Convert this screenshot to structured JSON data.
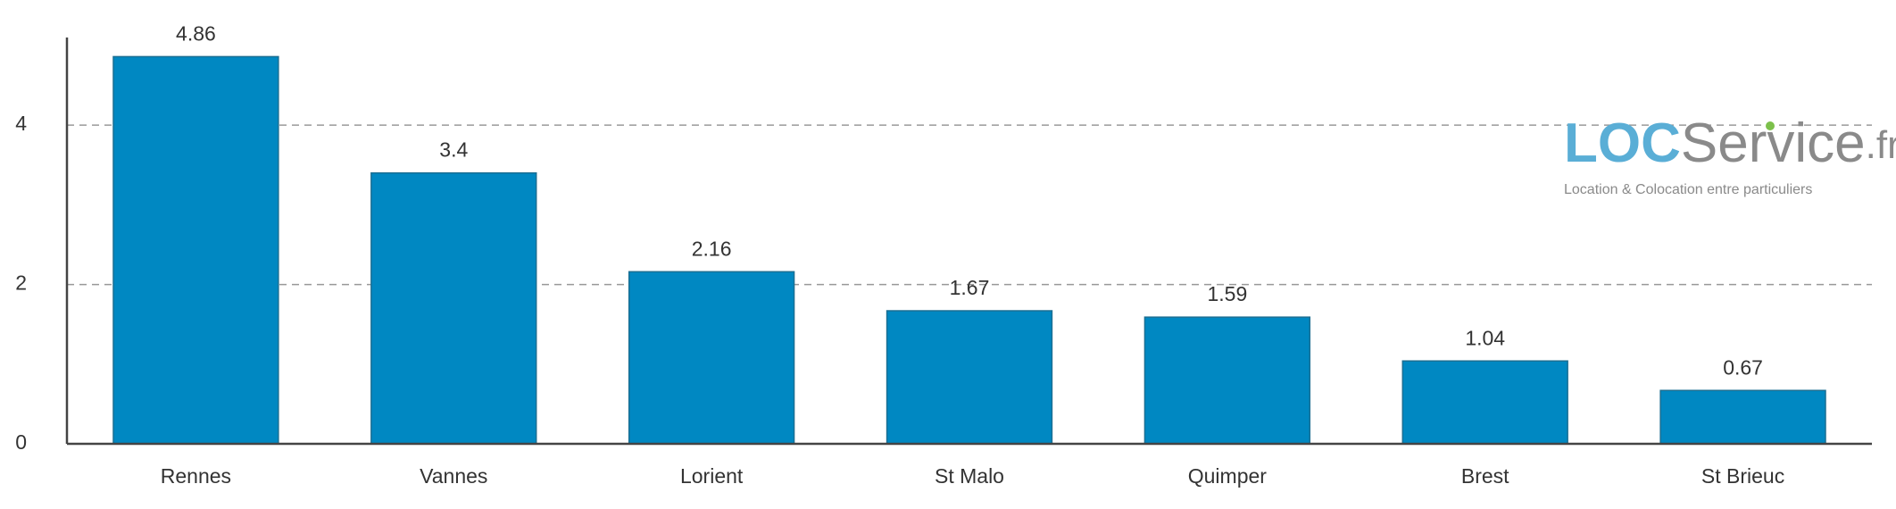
{
  "chart_data": {
    "type": "bar",
    "categories": [
      "Rennes",
      "Vannes",
      "Lorient",
      "St Malo",
      "Quimper",
      "Brest",
      "St Brieuc"
    ],
    "values": [
      4.86,
      3.4,
      2.16,
      1.67,
      1.59,
      1.04,
      0.67
    ],
    "color": "#0088c2",
    "ylim": [
      0,
      5.1
    ],
    "yticks": [
      0,
      2,
      4
    ],
    "grid": true,
    "logo": {
      "brand": "LOC",
      "name": "Service",
      "tld": ".fr",
      "tagline": "Location & Colocation entre particuliers"
    }
  }
}
